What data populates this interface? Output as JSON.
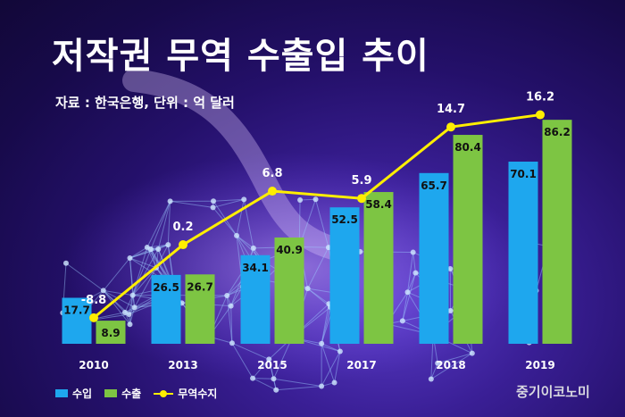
{
  "title": "저작권 무역 수출입 추이",
  "source": "자료 : 한국은행, 단위 : 억 달러",
  "brand": "중기이코노미",
  "colors": {
    "import": "#1ea7ee",
    "export": "#7dc543",
    "balance": "#ffee00",
    "value_text": "#111111",
    "label_text": "#ffffff"
  },
  "legend": [
    {
      "label": "수입",
      "color": "#1ea7ee",
      "kind": "bar"
    },
    {
      "label": "수출",
      "color": "#7dc543",
      "kind": "bar"
    },
    {
      "label": "무역수지",
      "color": "#ffee00",
      "kind": "line"
    }
  ],
  "chart_data": {
    "type": "bar",
    "categories": [
      "2010",
      "2013",
      "2015",
      "2017",
      "2018",
      "2019"
    ],
    "series": [
      {
        "name": "수입",
        "type": "bar",
        "values": [
          17.7,
          26.5,
          34.1,
          52.5,
          65.7,
          70.1
        ]
      },
      {
        "name": "수출",
        "type": "bar",
        "values": [
          8.9,
          26.7,
          40.9,
          58.4,
          80.4,
          86.2
        ]
      },
      {
        "name": "무역수지",
        "type": "line",
        "values": [
          -8.8,
          0.2,
          6.8,
          5.9,
          14.7,
          16.2
        ]
      }
    ],
    "bar_ylim": [
      0,
      100
    ],
    "line_ylim": [
      -12,
      20
    ],
    "legend_position": "bottom-left",
    "grid": false
  }
}
